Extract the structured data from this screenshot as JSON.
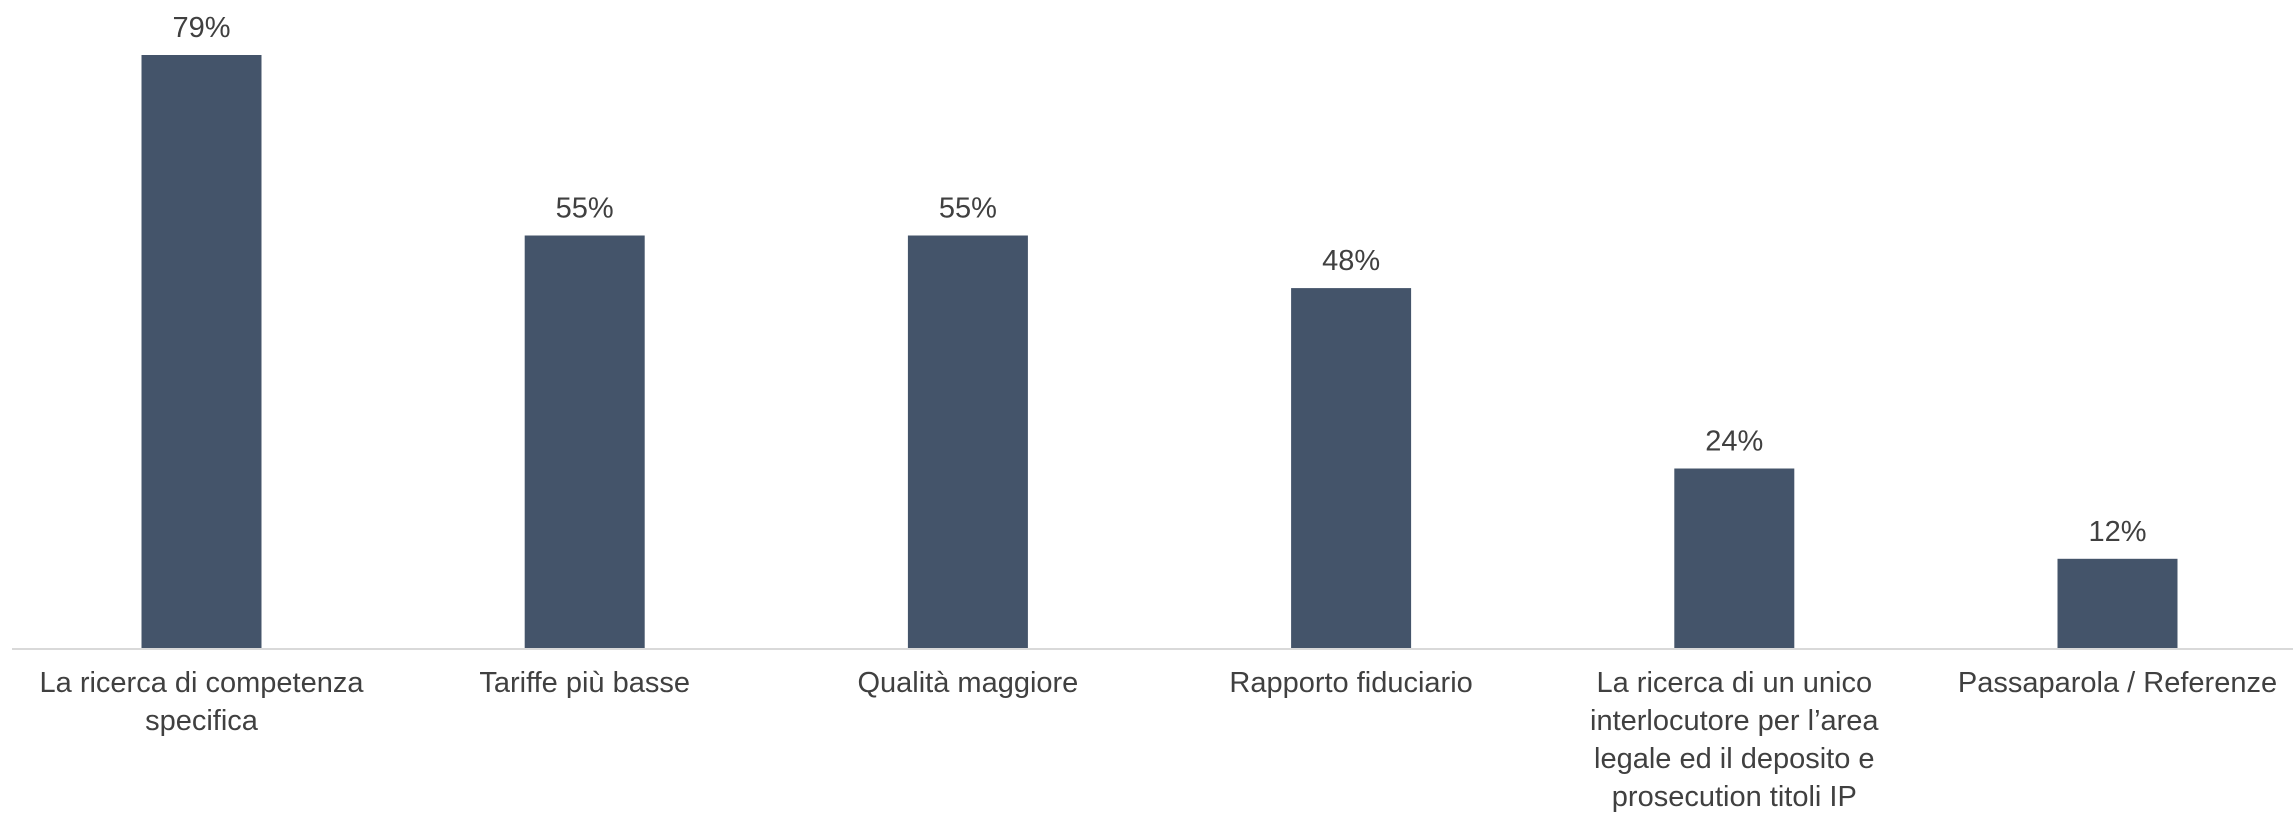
{
  "chart_data": {
    "type": "bar",
    "categories": [
      [
        "La ricerca di competenza",
        "specifica"
      ],
      [
        "Tariffe più basse"
      ],
      [
        "Qualità maggiore"
      ],
      [
        "Rapporto fiduciario"
      ],
      [
        "La ricerca di un unico",
        "interlocutore per l’area",
        "legale ed il deposito e",
        "prosecution titoli IP"
      ],
      [
        "Passaparola / Referenze"
      ]
    ],
    "values": [
      79,
      55,
      55,
      48,
      24,
      12
    ],
    "data_labels": [
      "79%",
      "55%",
      "55%",
      "48%",
      "24%",
      "12%"
    ],
    "unit": "%",
    "title": "",
    "xlabel": "",
    "ylabel": "",
    "ylim": [
      0,
      79
    ],
    "grid": false,
    "legend": "none",
    "colors": {
      "bar": "#44546A",
      "axis": "#D9D9D9",
      "text": "#404040"
    }
  }
}
